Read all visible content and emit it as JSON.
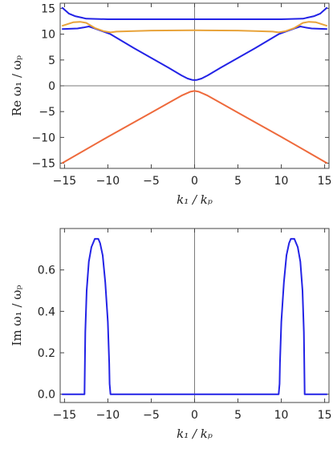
{
  "chart_data": [
    {
      "type": "line",
      "xlabel": "k₁ / kₚ",
      "ylabel": "Re ω₁ / ωₚ",
      "xlim": [
        -15.5,
        15.5
      ],
      "ylim": [
        -16,
        16
      ],
      "xticks": [
        -15,
        -10,
        -5,
        0,
        5,
        10,
        15
      ],
      "yticks": [
        -15,
        -10,
        -5,
        0,
        5,
        10,
        15
      ],
      "grid": false,
      "reference_lines": {
        "x": 0,
        "y": 0
      },
      "series": [
        {
          "color": "#2323e6",
          "x": [
            -15.3,
            -14.5,
            -13.8,
            -13.0,
            -12.5,
            -10,
            -5,
            0,
            5,
            10,
            12.5,
            13.0,
            13.8,
            14.5,
            15.3
          ],
          "y": [
            15.2,
            14.0,
            13.5,
            13.2,
            13.0,
            12.9,
            12.9,
            12.9,
            12.9,
            12.9,
            13.0,
            13.2,
            13.5,
            14.0,
            15.2
          ]
        },
        {
          "color": "#2323e6",
          "x": [
            -15.3,
            -13.5,
            -12.8,
            -12.2,
            -11.5,
            -10.5,
            -9.7,
            -7,
            -5,
            -3,
            -1.5,
            -0.8,
            -0.3,
            0,
            0.3,
            0.8,
            1.5,
            3,
            5,
            7,
            9.7,
            10.5,
            11.5,
            12.2,
            12.8,
            13.5,
            15.3
          ],
          "y": [
            11.0,
            11.1,
            11.3,
            11.5,
            11.1,
            10.5,
            10.0,
            7.3,
            5.4,
            3.5,
            2.0,
            1.4,
            1.15,
            1.1,
            1.15,
            1.4,
            2.0,
            3.5,
            5.4,
            7.3,
            10.0,
            10.5,
            11.1,
            11.5,
            11.3,
            11.1,
            11.0
          ]
        },
        {
          "color": "#e8a33a",
          "x": [
            -15.3,
            -14.0,
            -13.2,
            -12.5,
            -11.5,
            -10.5,
            -9.7,
            -9.0,
            -5,
            0,
            5,
            9.0,
            9.7,
            10.5,
            11.5,
            12.5,
            13.2,
            14.0,
            15.3
          ],
          "y": [
            11.6,
            12.3,
            12.4,
            12.2,
            11.2,
            10.6,
            10.35,
            10.5,
            10.7,
            10.75,
            10.7,
            10.5,
            10.35,
            10.6,
            11.2,
            12.2,
            12.4,
            12.3,
            11.6
          ]
        },
        {
          "color": "#ee6a3c",
          "x": [
            -15.3,
            -10,
            -5,
            -1.5,
            -0.5,
            0,
            0.5,
            1.5,
            5,
            10,
            15.3
          ],
          "y": [
            -15.0,
            -9.9,
            -5.2,
            -1.9,
            -1.15,
            -1.0,
            -1.15,
            -1.9,
            -5.2,
            -9.9,
            -15.0
          ]
        }
      ]
    },
    {
      "type": "line",
      "xlabel": "k₁ / kₚ",
      "ylabel": "Im ω₁ / ωₚ",
      "xlim": [
        -15.5,
        15.5
      ],
      "ylim": [
        -0.04,
        0.8
      ],
      "xticks": [
        -15,
        -10,
        -5,
        0,
        5,
        10,
        15
      ],
      "yticks": [
        0.0,
        0.2,
        0.4,
        0.6
      ],
      "grid": false,
      "reference_lines": {
        "x": 0
      },
      "series": [
        {
          "color": "#2323e6",
          "x": [
            -15.3,
            -12.7,
            -12.6,
            -12.45,
            -12.2,
            -11.9,
            -11.5,
            -11.1,
            -10.9,
            -10.6,
            -10.3,
            -10.0,
            -9.85,
            -9.8,
            -9.7,
            9.7,
            9.8,
            9.85,
            10.0,
            10.3,
            10.6,
            10.9,
            11.1,
            11.5,
            11.9,
            12.2,
            12.45,
            12.6,
            12.7,
            15.3
          ],
          "y": [
            0.0,
            0.0,
            0.3,
            0.5,
            0.64,
            0.71,
            0.75,
            0.75,
            0.73,
            0.67,
            0.54,
            0.35,
            0.15,
            0.05,
            0.0,
            0.0,
            0.05,
            0.15,
            0.35,
            0.54,
            0.67,
            0.73,
            0.75,
            0.75,
            0.71,
            0.64,
            0.5,
            0.3,
            0.0,
            0.0
          ]
        }
      ]
    }
  ]
}
